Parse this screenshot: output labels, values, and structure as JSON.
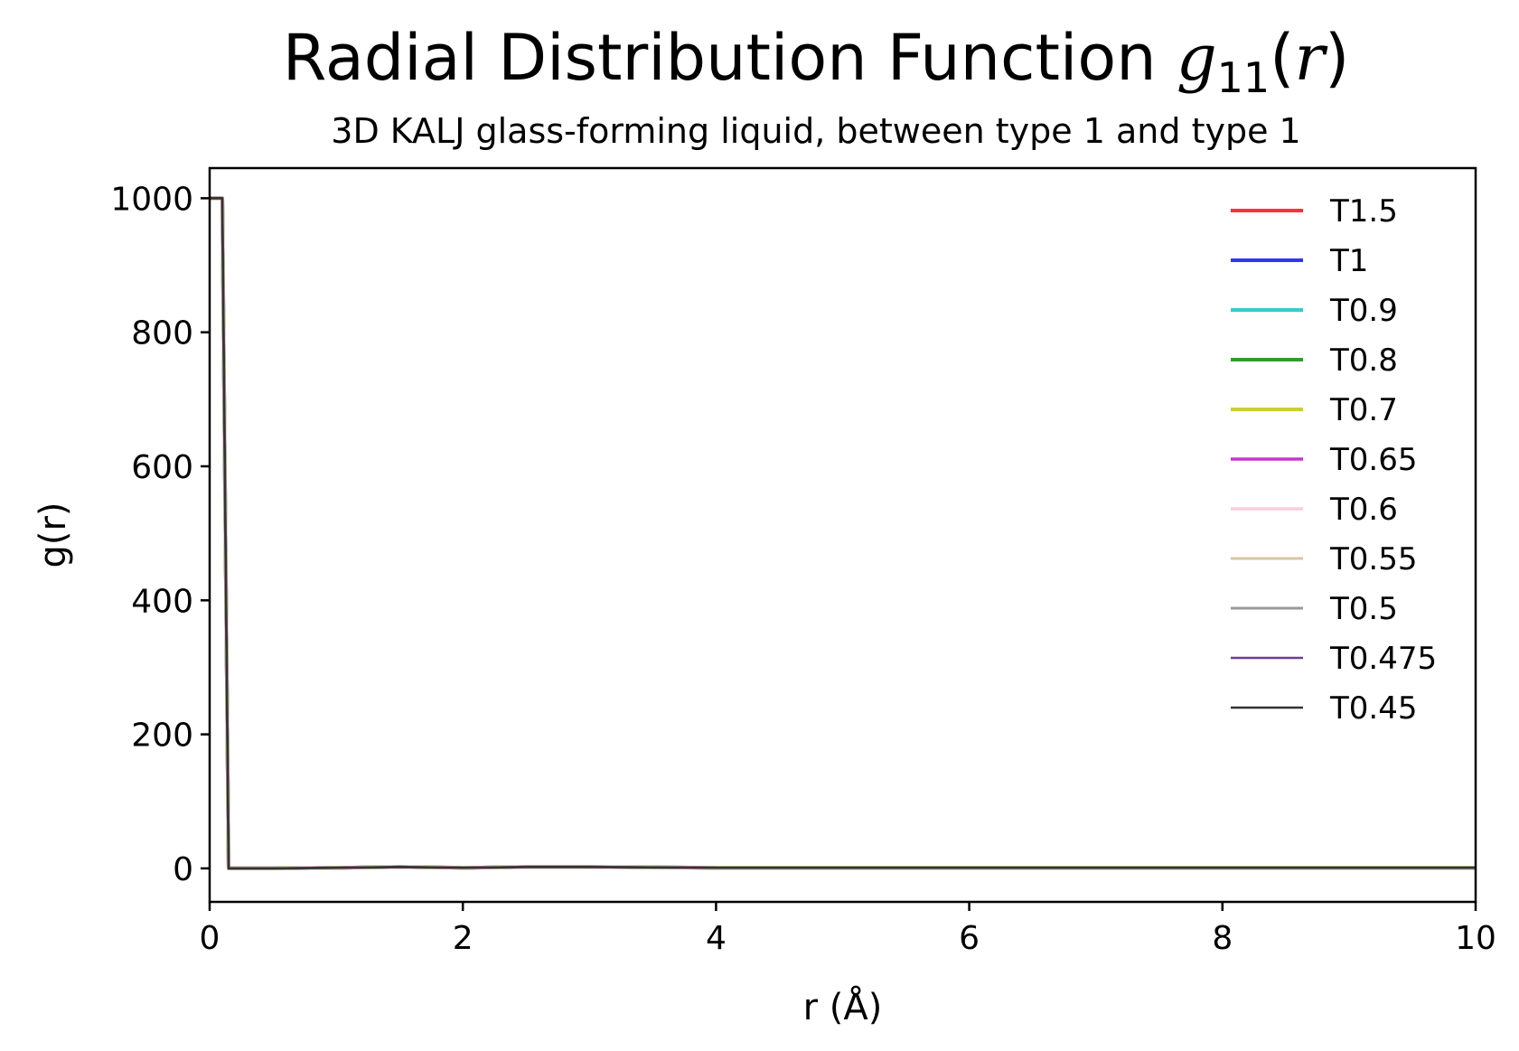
{
  "chart_data": {
    "type": "line",
    "title": "Radial Distribution Function ",
    "title_math": {
      "symbol": "g",
      "subscript": "11",
      "open": "(",
      "arg": "r",
      "close": ")"
    },
    "subtitle": "3D KALJ glass-forming liquid, between type 1 and type 1",
    "xlabel": "r (Å)",
    "ylabel": "g(r)",
    "xlim": [
      0,
      10
    ],
    "ylim": [
      -50,
      1045
    ],
    "xticks": [
      "0",
      "2",
      "4",
      "6",
      "8",
      "10"
    ],
    "yticks": [
      "0",
      "200",
      "400",
      "600",
      "800",
      "1000"
    ],
    "grid": false,
    "legend_position": "top-right",
    "x": [
      0,
      0.05,
      0.1,
      0.15,
      0.5,
      1.0,
      1.5,
      2.0,
      2.5,
      3.0,
      4.0,
      5.0,
      6.0,
      7.0,
      8.0,
      9.0,
      10.0
    ],
    "series": [
      {
        "name": "T1.5",
        "color": "#ff3333",
        "values": [
          1000,
          1000,
          1000,
          0,
          0,
          1,
          2,
          1,
          2,
          2,
          1,
          1,
          1,
          1,
          1,
          1,
          1
        ]
      },
      {
        "name": "T1",
        "color": "#3333ff",
        "values": [
          1000,
          1000,
          1000,
          0,
          0,
          1,
          2,
          1,
          2,
          2,
          1,
          1,
          1,
          1,
          1,
          1,
          1
        ]
      },
      {
        "name": "T0.9",
        "color": "#33cccc",
        "values": [
          1000,
          1000,
          1000,
          0,
          0,
          1,
          2,
          1,
          2,
          2,
          1,
          1,
          1,
          1,
          1,
          1,
          1
        ]
      },
      {
        "name": "T0.8",
        "color": "#339933",
        "values": [
          1000,
          1000,
          1000,
          0,
          0,
          1,
          2,
          1,
          2,
          2,
          1,
          1,
          1,
          1,
          1,
          1,
          1
        ]
      },
      {
        "name": "T0.7",
        "color": "#cccc33",
        "values": [
          1000,
          1000,
          1000,
          0,
          0,
          1,
          2,
          1,
          2,
          2,
          1,
          1,
          1,
          1,
          1,
          1,
          1
        ]
      },
      {
        "name": "T0.65",
        "color": "#cc33cc",
        "values": [
          1000,
          1000,
          1000,
          0,
          0,
          1,
          2,
          1,
          2,
          2,
          1,
          1,
          1,
          1,
          1,
          1,
          1
        ]
      },
      {
        "name": "T0.6",
        "color": "#ffccd9",
        "values": [
          1000,
          1000,
          1000,
          0,
          0,
          1,
          2,
          1,
          2,
          2,
          1,
          1,
          1,
          1,
          1,
          1,
          1
        ]
      },
      {
        "name": "T0.55",
        "color": "#d9c4a3",
        "values": [
          1000,
          1000,
          1000,
          0,
          0,
          1,
          2,
          1,
          2,
          2,
          1,
          1,
          1,
          1,
          1,
          1,
          1
        ]
      },
      {
        "name": "T0.5",
        "color": "#999999",
        "values": [
          1000,
          1000,
          1000,
          0,
          0,
          1,
          2,
          1,
          2,
          2,
          1,
          1,
          1,
          1,
          1,
          1,
          1
        ]
      },
      {
        "name": "T0.475",
        "color": "#6f3a9e",
        "values": [
          1000,
          1000,
          1000,
          0,
          0,
          1,
          2,
          1,
          2,
          2,
          1,
          1,
          1,
          1,
          1,
          1,
          1
        ]
      },
      {
        "name": "T0.45",
        "color": "#333333",
        "values": [
          1000,
          1000,
          1000,
          0,
          0,
          1,
          2,
          1,
          2,
          2,
          1,
          1,
          1,
          1,
          1,
          1,
          1
        ]
      }
    ]
  }
}
